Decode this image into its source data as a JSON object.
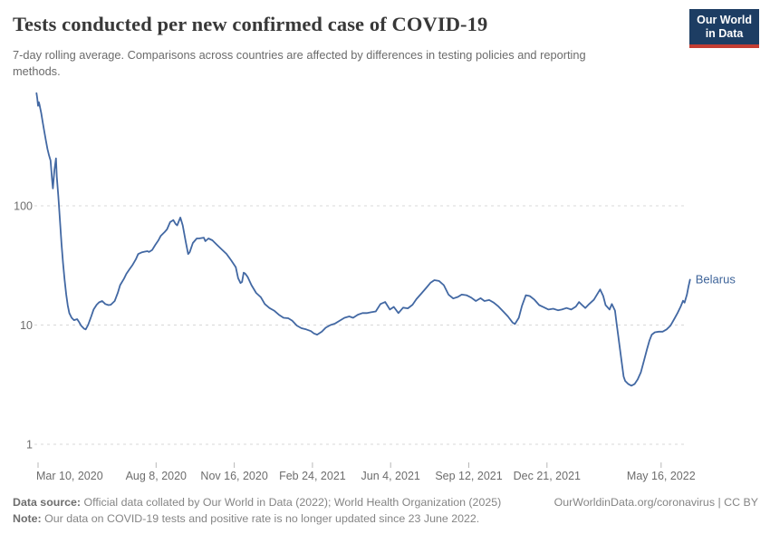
{
  "header": {
    "title": "Tests conducted per new confirmed case of COVID-19",
    "subtitle": "7-day rolling average. Comparisons across countries are affected by differences in testing policies and reporting methods.",
    "logo_line1": "Our World",
    "logo_line2": "in Data"
  },
  "footer": {
    "source_label": "Data source:",
    "source_text": " Official data collated by Our World in Data (2022); World Health Organization (2025)",
    "link": "OurWorldinData.org/coronavirus | CC BY",
    "note_label": "Note:",
    "note_text": " Our data on COVID-19 tests and positive rate is no longer updated since 23 June 2022."
  },
  "colors": {
    "line": "#4268a3",
    "series_label": "#3d6399",
    "grid": "#d8d8d8",
    "axis_text": "#6d6d6d",
    "tick_mark": "#b8b8b8",
    "logo_bg": "#1d3d63",
    "logo_red": "#c33d33"
  },
  "chart_data": {
    "type": "line",
    "title": "Tests conducted per new confirmed case of COVID-19",
    "subtitle": "7-day rolling average.",
    "yscale": "log",
    "grid": "dashed-horizontal",
    "legend_position": "end-of-line",
    "ylim": [
      1,
      1000
    ],
    "xrange": [
      "2020-03-08",
      "2022-06-23"
    ],
    "yticks": [
      {
        "v": 1,
        "label": "1"
      },
      {
        "v": 10,
        "label": "10"
      },
      {
        "v": 100,
        "label": "100"
      }
    ],
    "xticks": [
      {
        "date": "2020-03-10",
        "label": "Mar 10, 2020"
      },
      {
        "date": "2020-08-08",
        "label": "Aug 8, 2020"
      },
      {
        "date": "2020-11-16",
        "label": "Nov 16, 2020"
      },
      {
        "date": "2021-02-24",
        "label": "Feb 24, 2021"
      },
      {
        "date": "2021-06-04",
        "label": "Jun 4, 2021"
      },
      {
        "date": "2021-09-12",
        "label": "Sep 12, 2021"
      },
      {
        "date": "2021-12-21",
        "label": "Dec 21, 2021"
      },
      {
        "date": "2022-05-16",
        "label": "May 16, 2022"
      }
    ],
    "series": [
      {
        "name": "Belarus",
        "color": "#4268a3",
        "points": [
          [
            "2020-03-08",
            880
          ],
          [
            "2020-03-09",
            800
          ],
          [
            "2020-03-10",
            690
          ],
          [
            "2020-03-11",
            740
          ],
          [
            "2020-03-12",
            700
          ],
          [
            "2020-03-14",
            600
          ],
          [
            "2020-03-16",
            500
          ],
          [
            "2020-03-18",
            420
          ],
          [
            "2020-03-20",
            355
          ],
          [
            "2020-03-22",
            300
          ],
          [
            "2020-03-24",
            265
          ],
          [
            "2020-03-26",
            240
          ],
          [
            "2020-03-28",
            165
          ],
          [
            "2020-03-29",
            140
          ],
          [
            "2020-03-31",
            200
          ],
          [
            "2020-04-02",
            250
          ],
          [
            "2020-04-03",
            175
          ],
          [
            "2020-04-05",
            120
          ],
          [
            "2020-04-07",
            75
          ],
          [
            "2020-04-09",
            48
          ],
          [
            "2020-04-11",
            33
          ],
          [
            "2020-04-13",
            24
          ],
          [
            "2020-04-15",
            18
          ],
          [
            "2020-04-17",
            14.6
          ],
          [
            "2020-04-19",
            12.6
          ],
          [
            "2020-04-22",
            11.5
          ],
          [
            "2020-04-25",
            11.0
          ],
          [
            "2020-04-29",
            11.2
          ],
          [
            "2020-05-01",
            10.7
          ],
          [
            "2020-05-04",
            9.9
          ],
          [
            "2020-05-08",
            9.3
          ],
          [
            "2020-05-10",
            9.2
          ],
          [
            "2020-05-13",
            10.0
          ],
          [
            "2020-05-17",
            11.8
          ],
          [
            "2020-05-20",
            13.5
          ],
          [
            "2020-05-24",
            14.8
          ],
          [
            "2020-05-27",
            15.5
          ],
          [
            "2020-05-31",
            15.9
          ],
          [
            "2020-06-04",
            15.0
          ],
          [
            "2020-06-08",
            14.7
          ],
          [
            "2020-06-11",
            14.8
          ],
          [
            "2020-06-16",
            15.9
          ],
          [
            "2020-06-20",
            18.6
          ],
          [
            "2020-06-23",
            21.6
          ],
          [
            "2020-06-28",
            24.5
          ],
          [
            "2020-07-01",
            26.9
          ],
          [
            "2020-07-05",
            29.4
          ],
          [
            "2020-07-09",
            32.0
          ],
          [
            "2020-07-13",
            35.5
          ],
          [
            "2020-07-16",
            39.4
          ],
          [
            "2020-07-21",
            40.8
          ],
          [
            "2020-07-24",
            41.2
          ],
          [
            "2020-07-28",
            41.7
          ],
          [
            "2020-07-30",
            41.0
          ],
          [
            "2020-08-03",
            42.6
          ],
          [
            "2020-08-07",
            47.0
          ],
          [
            "2020-08-11",
            51.4
          ],
          [
            "2020-08-14",
            56.0
          ],
          [
            "2020-08-19",
            60.3
          ],
          [
            "2020-08-22",
            63.5
          ],
          [
            "2020-08-26",
            73.0
          ],
          [
            "2020-08-30",
            76.0
          ],
          [
            "2020-09-02",
            70.3
          ],
          [
            "2020-09-04",
            68.6
          ],
          [
            "2020-09-08",
            79.8
          ],
          [
            "2020-09-11",
            68.6
          ],
          [
            "2020-09-15",
            49.6
          ],
          [
            "2020-09-18",
            39.4
          ],
          [
            "2020-09-20",
            40.8
          ],
          [
            "2020-09-24",
            48.8
          ],
          [
            "2020-09-29",
            53.2
          ],
          [
            "2020-10-02",
            53.2
          ],
          [
            "2020-10-08",
            54.1
          ],
          [
            "2020-10-10",
            50.5
          ],
          [
            "2020-10-14",
            53.2
          ],
          [
            "2020-10-19",
            51.4
          ],
          [
            "2020-10-25",
            47.0
          ],
          [
            "2020-10-31",
            43.1
          ],
          [
            "2020-11-06",
            39.5
          ],
          [
            "2020-11-12",
            34.9
          ],
          [
            "2020-11-18",
            30.5
          ],
          [
            "2020-11-21",
            24.7
          ],
          [
            "2020-11-24",
            22.5
          ],
          [
            "2020-11-26",
            23.0
          ],
          [
            "2020-11-28",
            27.5
          ],
          [
            "2020-11-30",
            27.0
          ],
          [
            "2020-12-03",
            25.4
          ],
          [
            "2020-12-08",
            21.6
          ],
          [
            "2020-12-14",
            18.6
          ],
          [
            "2020-12-20",
            17.1
          ],
          [
            "2020-12-25",
            15.0
          ],
          [
            "2020-12-31",
            13.9
          ],
          [
            "2021-01-06",
            13.2
          ],
          [
            "2021-01-12",
            12.2
          ],
          [
            "2021-01-18",
            11.5
          ],
          [
            "2021-01-24",
            11.4
          ],
          [
            "2021-01-29",
            10.9
          ],
          [
            "2021-02-04",
            9.9
          ],
          [
            "2021-02-10",
            9.4
          ],
          [
            "2021-02-16",
            9.2
          ],
          [
            "2021-02-22",
            8.9
          ],
          [
            "2021-02-26",
            8.5
          ],
          [
            "2021-03-02",
            8.3
          ],
          [
            "2021-03-08",
            8.8
          ],
          [
            "2021-03-13",
            9.5
          ],
          [
            "2021-03-19",
            10.0
          ],
          [
            "2021-03-25",
            10.3
          ],
          [
            "2021-03-31",
            10.9
          ],
          [
            "2021-04-06",
            11.5
          ],
          [
            "2021-04-12",
            11.8
          ],
          [
            "2021-04-17",
            11.5
          ],
          [
            "2021-04-23",
            12.2
          ],
          [
            "2021-04-29",
            12.6
          ],
          [
            "2021-05-05",
            12.6
          ],
          [
            "2021-05-10",
            12.8
          ],
          [
            "2021-05-16",
            13.0
          ],
          [
            "2021-05-22",
            15.0
          ],
          [
            "2021-05-28",
            15.6
          ],
          [
            "2021-06-03",
            13.5
          ],
          [
            "2021-06-08",
            14.2
          ],
          [
            "2021-06-14",
            12.6
          ],
          [
            "2021-06-20",
            14.0
          ],
          [
            "2021-06-26",
            13.8
          ],
          [
            "2021-07-02",
            14.8
          ],
          [
            "2021-07-07",
            16.5
          ],
          [
            "2021-07-13",
            18.3
          ],
          [
            "2021-07-19",
            20.3
          ],
          [
            "2021-07-25",
            22.6
          ],
          [
            "2021-07-30",
            23.8
          ],
          [
            "2021-08-05",
            23.4
          ],
          [
            "2021-08-11",
            21.6
          ],
          [
            "2021-08-17",
            18.0
          ],
          [
            "2021-08-23",
            16.7
          ],
          [
            "2021-08-29",
            17.2
          ],
          [
            "2021-09-03",
            18.0
          ],
          [
            "2021-09-09",
            17.8
          ],
          [
            "2021-09-15",
            17.0
          ],
          [
            "2021-09-21",
            15.9
          ],
          [
            "2021-09-27",
            16.8
          ],
          [
            "2021-10-02",
            15.9
          ],
          [
            "2021-10-08",
            16.2
          ],
          [
            "2021-10-14",
            15.4
          ],
          [
            "2021-10-20",
            14.3
          ],
          [
            "2021-10-26",
            13.0
          ],
          [
            "2021-11-01",
            11.8
          ],
          [
            "2021-11-07",
            10.5
          ],
          [
            "2021-11-10",
            10.2
          ],
          [
            "2021-11-15",
            11.5
          ],
          [
            "2021-11-19",
            14.5
          ],
          [
            "2021-11-24",
            17.8
          ],
          [
            "2021-11-29",
            17.5
          ],
          [
            "2021-12-05",
            16.3
          ],
          [
            "2021-12-11",
            14.7
          ],
          [
            "2021-12-17",
            14.1
          ],
          [
            "2021-12-23",
            13.5
          ],
          [
            "2021-12-29",
            13.7
          ],
          [
            "2022-01-04",
            13.3
          ],
          [
            "2022-01-09",
            13.5
          ],
          [
            "2022-01-15",
            13.9
          ],
          [
            "2022-01-21",
            13.5
          ],
          [
            "2022-01-27",
            14.3
          ],
          [
            "2022-01-31",
            15.6
          ],
          [
            "2022-02-04",
            14.7
          ],
          [
            "2022-02-08",
            13.9
          ],
          [
            "2022-02-13",
            15.0
          ],
          [
            "2022-02-19",
            16.3
          ],
          [
            "2022-02-23",
            18.0
          ],
          [
            "2022-02-27",
            19.9
          ],
          [
            "2022-03-03",
            17.5
          ],
          [
            "2022-03-06",
            14.7
          ],
          [
            "2022-03-11",
            13.5
          ],
          [
            "2022-03-14",
            15.0
          ],
          [
            "2022-03-18",
            13.2
          ],
          [
            "2022-03-20",
            10.4
          ],
          [
            "2022-03-22",
            8.3
          ],
          [
            "2022-03-26",
            5.2
          ],
          [
            "2022-03-29",
            3.7
          ],
          [
            "2022-03-31",
            3.4
          ],
          [
            "2022-04-04",
            3.2
          ],
          [
            "2022-04-08",
            3.1
          ],
          [
            "2022-04-12",
            3.2
          ],
          [
            "2022-04-16",
            3.5
          ],
          [
            "2022-04-20",
            4.0
          ],
          [
            "2022-04-24",
            5.0
          ],
          [
            "2022-04-28",
            6.3
          ],
          [
            "2022-05-01",
            7.4
          ],
          [
            "2022-05-04",
            8.3
          ],
          [
            "2022-05-08",
            8.7
          ],
          [
            "2022-05-13",
            8.8
          ],
          [
            "2022-05-18",
            8.8
          ],
          [
            "2022-05-23",
            9.2
          ],
          [
            "2022-05-28",
            9.9
          ],
          [
            "2022-06-02",
            11.3
          ],
          [
            "2022-06-06",
            12.6
          ],
          [
            "2022-06-10",
            14.3
          ],
          [
            "2022-06-13",
            16.0
          ],
          [
            "2022-06-15",
            15.4
          ],
          [
            "2022-06-18",
            18.0
          ],
          [
            "2022-06-20",
            21.0
          ],
          [
            "2022-06-22",
            24.0
          ]
        ]
      }
    ]
  }
}
